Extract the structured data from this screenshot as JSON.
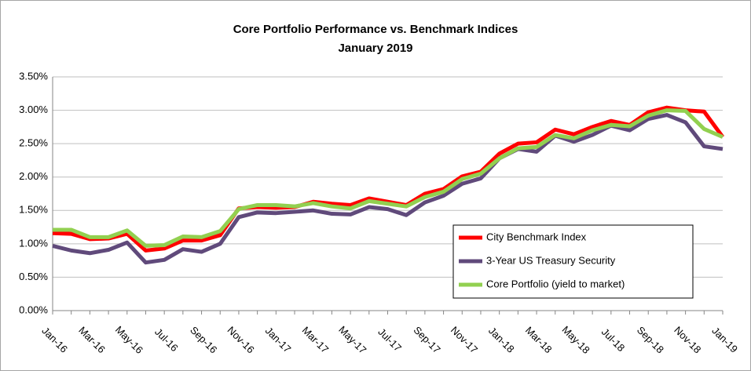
{
  "chart_data": {
    "type": "line",
    "title": "Core Portfolio Performance vs. Benchmark Indices",
    "subtitle": "January 2019",
    "categories": [
      "Jan-16",
      null,
      "Mar-16",
      null,
      "May-16",
      null,
      "Jul-16",
      null,
      "Sep-16",
      null,
      "Nov-16",
      null,
      "Jan-17",
      null,
      "Mar-17",
      null,
      "May-17",
      null,
      "Jul-17",
      null,
      "Sep-17",
      null,
      "Nov-17",
      null,
      "Jan-18",
      null,
      "Mar-18",
      null,
      "May-18",
      null,
      "Jul-18",
      null,
      "Sep-18",
      null,
      "Nov-18",
      null,
      "Jan-19"
    ],
    "series": [
      {
        "name": "City Benchmark Index",
        "color": "#ff0000",
        "values": [
          1.16,
          1.15,
          1.07,
          1.08,
          1.15,
          0.9,
          0.93,
          1.05,
          1.05,
          1.13,
          1.53,
          1.55,
          1.54,
          1.55,
          1.63,
          1.6,
          1.58,
          1.68,
          1.63,
          1.58,
          1.75,
          1.82,
          2.01,
          2.08,
          2.35,
          2.5,
          2.52,
          2.71,
          2.64,
          2.75,
          2.84,
          2.78,
          2.97,
          3.04,
          3.0,
          2.98,
          2.6
        ]
      },
      {
        "name": "3-Year US Treasury Security",
        "color": "#604a7b",
        "values": [
          0.97,
          0.9,
          0.86,
          0.91,
          1.02,
          0.72,
          0.76,
          0.92,
          0.88,
          1.0,
          1.4,
          1.47,
          1.46,
          1.48,
          1.5,
          1.45,
          1.44,
          1.55,
          1.52,
          1.43,
          1.62,
          1.72,
          1.9,
          1.98,
          2.28,
          2.42,
          2.38,
          2.62,
          2.53,
          2.63,
          2.77,
          2.7,
          2.87,
          2.93,
          2.82,
          2.46,
          2.42
        ]
      },
      {
        "name": "Core Portfolio (yield to market)",
        "color": "#92d050",
        "values": [
          1.21,
          1.21,
          1.1,
          1.1,
          1.2,
          0.97,
          0.98,
          1.11,
          1.1,
          1.19,
          1.52,
          1.58,
          1.58,
          1.56,
          1.61,
          1.56,
          1.53,
          1.64,
          1.6,
          1.56,
          1.7,
          1.78,
          1.97,
          2.05,
          2.28,
          2.43,
          2.45,
          2.63,
          2.58,
          2.7,
          2.78,
          2.76,
          2.92,
          3.0,
          2.99,
          2.72,
          2.6
        ]
      }
    ],
    "ylim": [
      0,
      3.5
    ],
    "yticks": [
      {
        "value": 0,
        "label": "0.00%"
      },
      {
        "value": 0.5,
        "label": "0.50%"
      },
      {
        "value": 1,
        "label": "1.00%"
      },
      {
        "value": 1.5,
        "label": "1.50%"
      },
      {
        "value": 2,
        "label": "2.00%"
      },
      {
        "value": 2.5,
        "label": "2.50%"
      },
      {
        "value": 3,
        "label": "3.00%"
      },
      {
        "value": 3.5,
        "label": "3.50%"
      }
    ],
    "grid": true,
    "legend": "lower right"
  }
}
